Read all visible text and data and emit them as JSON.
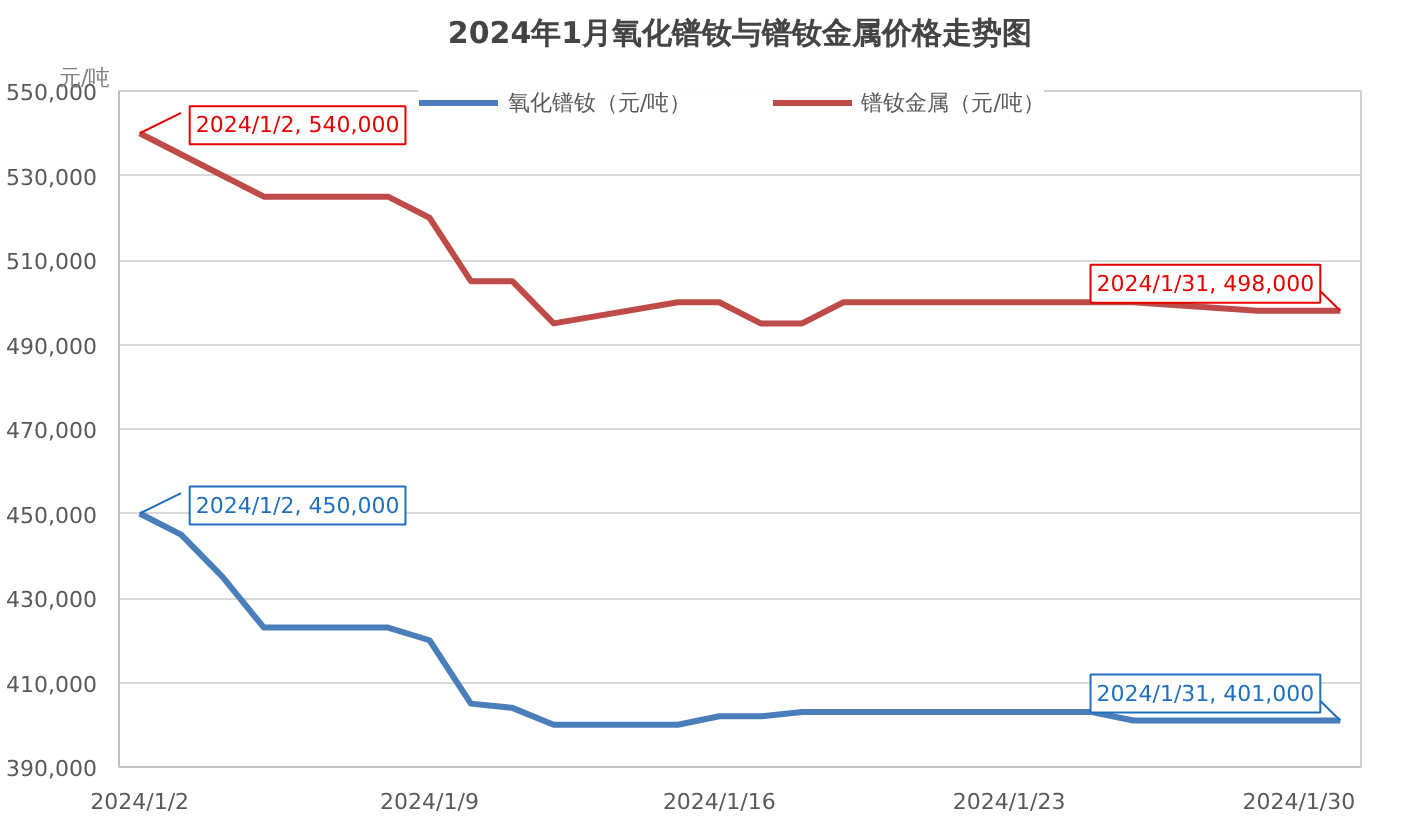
{
  "chart_data": {
    "type": "line",
    "title": "2024年1月氧化镨钕与镨钕金属价格走势图",
    "ylabel": "元/吨",
    "series": [
      {
        "name": "氧化镨钕（元/吨）",
        "color": "#4a7ebb",
        "x": [
          "2024-01-02",
          "2024-01-03",
          "2024-01-04",
          "2024-01-05",
          "2024-01-08",
          "2024-01-09",
          "2024-01-10",
          "2024-01-11",
          "2024-01-12",
          "2024-01-15",
          "2024-01-16",
          "2024-01-17",
          "2024-01-18",
          "2024-01-25",
          "2024-01-26",
          "2024-01-31"
        ],
        "values": [
          450000,
          445000,
          435000,
          423000,
          423000,
          420000,
          405000,
          404000,
          400000,
          400000,
          402000,
          402000,
          403000,
          403000,
          401000,
          401000
        ]
      },
      {
        "name": "镨钕金属（元/吨）",
        "color": "#be4b48",
        "x": [
          "2024-01-02",
          "2024-01-05",
          "2024-01-08",
          "2024-01-09",
          "2024-01-10",
          "2024-01-11",
          "2024-01-12",
          "2024-01-15",
          "2024-01-16",
          "2024-01-17",
          "2024-01-18",
          "2024-01-19",
          "2024-01-26",
          "2024-01-29",
          "2024-01-31"
        ],
        "values": [
          540000,
          525000,
          525000,
          520000,
          505000,
          505000,
          495000,
          500000,
          500000,
          495000,
          495000,
          500000,
          500000,
          498000,
          498000
        ]
      }
    ],
    "annotations": [
      {
        "text": "2024/1/2, 540,000",
        "x": "2024-01-02",
        "y": 540000
      },
      {
        "text": "2024/1/31, 498,000",
        "x": "2024-01-31",
        "y": 498000
      },
      {
        "text": "2024/1/2, 450,000",
        "x": "2024-01-02",
        "y": 450000
      },
      {
        "text": "2024/1/31, 401,000",
        "x": "2024-01-31",
        "y": 401000
      }
    ],
    "xlim": [
      "2024-01-01T12:00",
      "2024-01-31T12:00"
    ],
    "xticks": [
      {
        "value": "2024-01-02",
        "label": "2024/1/2"
      },
      {
        "value": "2024-01-09",
        "label": "2024/1/9"
      },
      {
        "value": "2024-01-16",
        "label": "2024/1/16"
      },
      {
        "value": "2024-01-23",
        "label": "2024/1/23"
      },
      {
        "value": "2024-01-30",
        "label": "2024/1/30"
      }
    ],
    "ylim": [
      390000,
      550000
    ],
    "yticks": [
      {
        "value": 390000,
        "label": "390,000"
      },
      {
        "value": 410000,
        "label": "410,000"
      },
      {
        "value": 430000,
        "label": "430,000"
      },
      {
        "value": 450000,
        "label": "450,000"
      },
      {
        "value": 470000,
        "label": "470,000"
      },
      {
        "value": 490000,
        "label": "490,000"
      },
      {
        "value": 510000,
        "label": "510,000"
      },
      {
        "value": 530000,
        "label": "530,000"
      },
      {
        "value": 550000,
        "label": "550,000"
      }
    ],
    "grid": "y",
    "legend": "top",
    "marker": "none",
    "line_style": "solid"
  }
}
